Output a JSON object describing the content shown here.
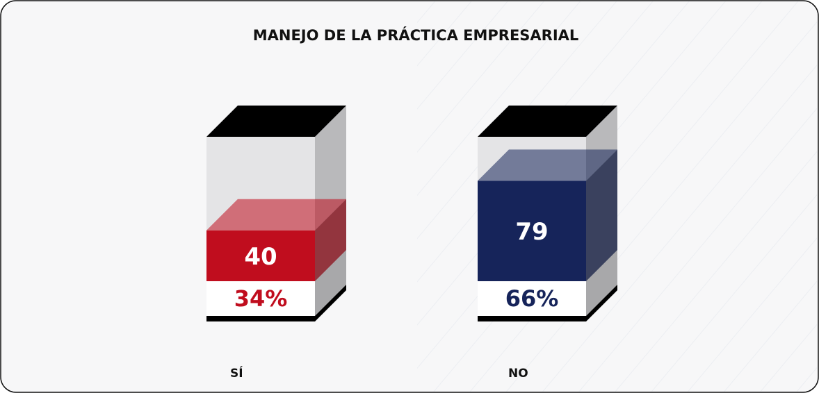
{
  "chart_data": {
    "type": "bar",
    "title": "MANEJO DE LA PRÁCTICA EMPRESARIAL",
    "categories": [
      "SÍ",
      "NO"
    ],
    "values": [
      40,
      79
    ],
    "percent_values": [
      34,
      66
    ],
    "percent_labels": [
      "34%",
      "66%"
    ],
    "colors": [
      "#c00d1e",
      "#16245a"
    ]
  }
}
